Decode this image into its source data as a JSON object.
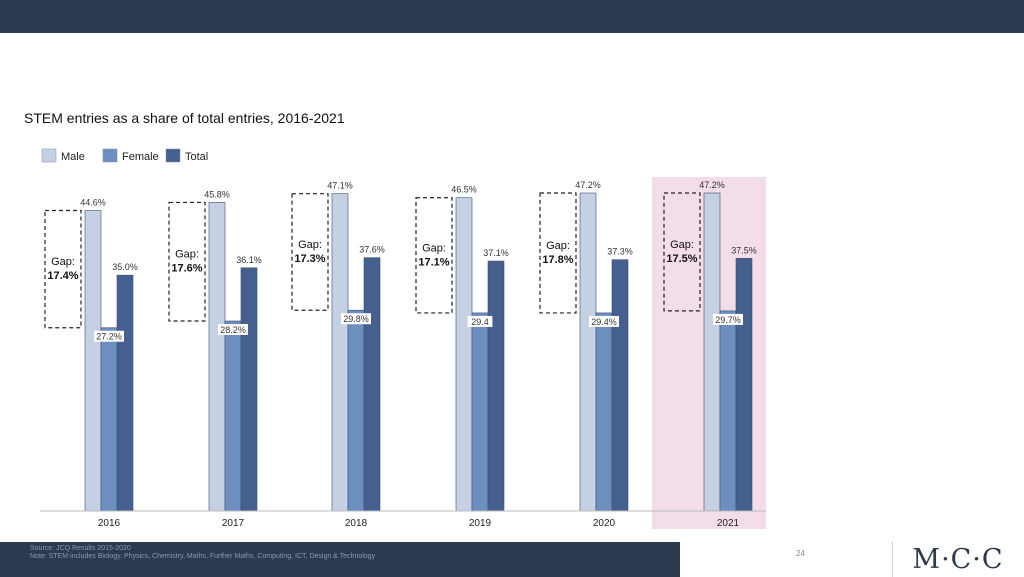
{
  "header": {
    "title": "STEM entries as a share of total entries, 2016-2021"
  },
  "chart_data": {
    "type": "bar",
    "title": "STEM entries as a share of total entries, 2016-2021",
    "xlabel": "",
    "ylabel": "",
    "ylim": [
      0,
      47.2
    ],
    "grid": false,
    "legend": "top-left",
    "categories": [
      "2016",
      "2017",
      "2018",
      "2019",
      "2020",
      "2021"
    ],
    "series": [
      {
        "name": "Male",
        "color": "#c5d0e2",
        "values": [
          44.6,
          45.8,
          47.1,
          46.5,
          47.2,
          47.2
        ],
        "labels": [
          "44.6%",
          "45.8%",
          "47.1%",
          "46.5%",
          "47.2%",
          "47.2%"
        ]
      },
      {
        "name": "Female",
        "color": "#6d8fc0",
        "values": [
          27.2,
          28.2,
          29.8,
          29.4,
          29.4,
          29.7
        ],
        "labels": [
          "27.2%",
          "28.2%",
          "29.8%",
          "29.4",
          "29.4%",
          "29.7%"
        ]
      },
      {
        "name": "Total",
        "color": "#455f8f",
        "values": [
          35.0,
          36.1,
          37.6,
          37.1,
          37.3,
          37.5
        ],
        "labels": [
          "35.0%",
          "36.1%",
          "37.6%",
          "37.1%",
          "37.3%",
          "37.5%"
        ]
      }
    ],
    "annotations": [
      {
        "label": "Gap:",
        "value": "17.4%"
      },
      {
        "label": "Gap:",
        "value": "17.6%"
      },
      {
        "label": "Gap:",
        "value": "17.3%"
      },
      {
        "label": "Gap:",
        "value": "17.1%"
      },
      {
        "label": "Gap:",
        "value": "17.8%"
      },
      {
        "label": "Gap:",
        "value": "17.5%"
      }
    ],
    "highlight": {
      "category": "2021",
      "color": "#f3dde8"
    }
  },
  "footer": {
    "source": "Source: JCQ Results 2015-2020",
    "note": "Note: STEM includes Biology, Physics, Chemistry, Maths, Further Maths, Computing, ICT, Design & Technology",
    "page_number": "24",
    "logo_text": "M·C·C"
  }
}
